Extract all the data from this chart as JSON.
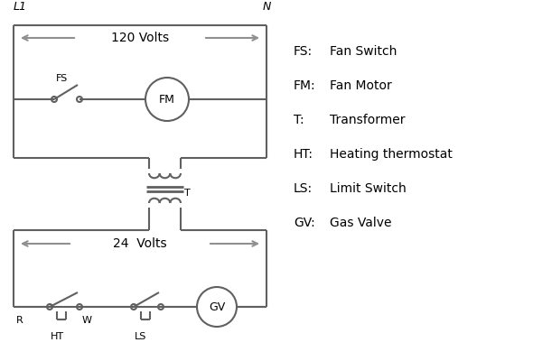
{
  "background_color": "#ffffff",
  "line_color": "#606060",
  "arrow_color": "#909090",
  "text_color": "#000000",
  "legend_items": [
    [
      "FS:",
      "Fan Switch"
    ],
    [
      "FM:",
      "Fan Motor"
    ],
    [
      "T:",
      "Transformer"
    ],
    [
      "HT:",
      "Heating thermostat"
    ],
    [
      "LS:",
      "Limit Switch"
    ],
    [
      "GV:",
      "Gas Valve"
    ]
  ],
  "label_120v": "120 Volts",
  "label_24v": "24  Volts",
  "label_L1": "L1",
  "label_N": "N",
  "label_T": "T",
  "label_FS": "FS",
  "label_FM": "FM",
  "label_GV": "GV",
  "label_R": "R",
  "label_W": "W",
  "label_HT": "HT",
  "label_LS": "LS"
}
